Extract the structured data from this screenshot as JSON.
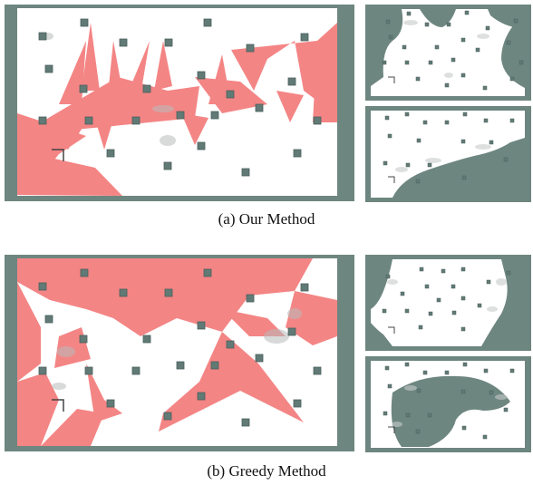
{
  "panels": [
    {
      "caption_tag": "(a)",
      "caption_text": "Our Method",
      "colors": {
        "wall": "#6e8680",
        "floor": "#ffffff",
        "coverage": "#f47f7f",
        "guard": "#617a76",
        "guard_edge": "#4a605c"
      }
    },
    {
      "caption_tag": "(b)",
      "caption_text": "Greedy Method",
      "colors": {
        "wall": "#6e8680",
        "floor": "#ffffff",
        "coverage": "#f47f7f",
        "guard": "#617a76",
        "guard_edge": "#4a605c"
      }
    }
  ]
}
